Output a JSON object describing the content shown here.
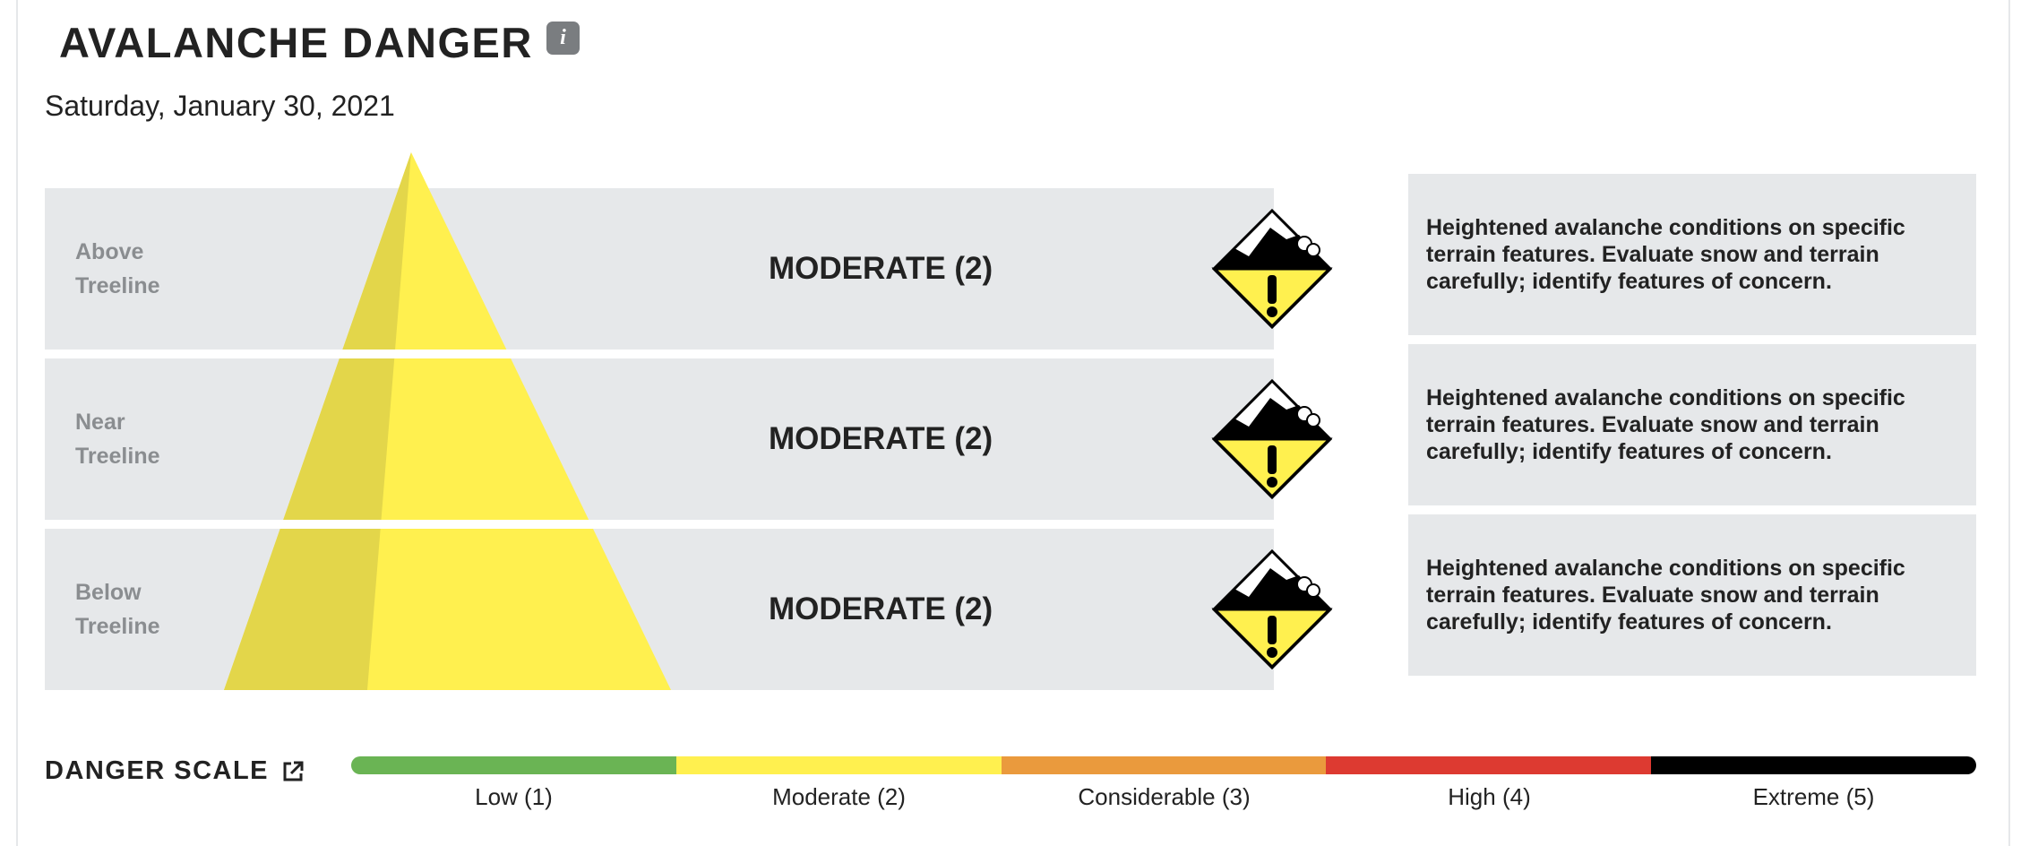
{
  "header": {
    "title": "AVALANCHE DANGER",
    "info_glyph": "i",
    "date": "Saturday, January 30, 2021"
  },
  "elevations": [
    {
      "label_line1": "Above",
      "label_line2": "Treeline",
      "rating": "MODERATE (2)",
      "level": 2,
      "icon": "moderate-danger-icon",
      "description": "Heightened avalanche conditions on specific terrain features. Evaluate snow and terrain carefully; identify features of concern."
    },
    {
      "label_line1": "Near",
      "label_line2": "Treeline",
      "rating": "MODERATE (2)",
      "level": 2,
      "icon": "moderate-danger-icon",
      "description": "Heightened avalanche conditions on specific terrain features. Evaluate snow and terrain carefully; identify features of concern."
    },
    {
      "label_line1": "Below",
      "label_line2": "Treeline",
      "rating": "MODERATE (2)",
      "level": 2,
      "icon": "moderate-danger-icon",
      "description": "Heightened avalanche conditions on specific terrain features. Evaluate snow and terrain carefully; identify features of concern."
    }
  ],
  "danger_scale": {
    "title": "DANGER SCALE",
    "link_icon": "external-link-icon",
    "levels": [
      {
        "label": "Low (1)",
        "color": "#6ab454"
      },
      {
        "label": "Moderate (2)",
        "color": "#fff04f"
      },
      {
        "label": "Considerable (3)",
        "color": "#ea9a3d"
      },
      {
        "label": "High (4)",
        "color": "#dd3a31"
      },
      {
        "label": "Extreme (5)",
        "color": "#000000"
      }
    ]
  },
  "colors": {
    "band_background": "#e6e8ea",
    "pyramid_light": "#fff04f",
    "pyramid_shade": "#e3d64a",
    "elevation_label": "#8a8d90"
  }
}
